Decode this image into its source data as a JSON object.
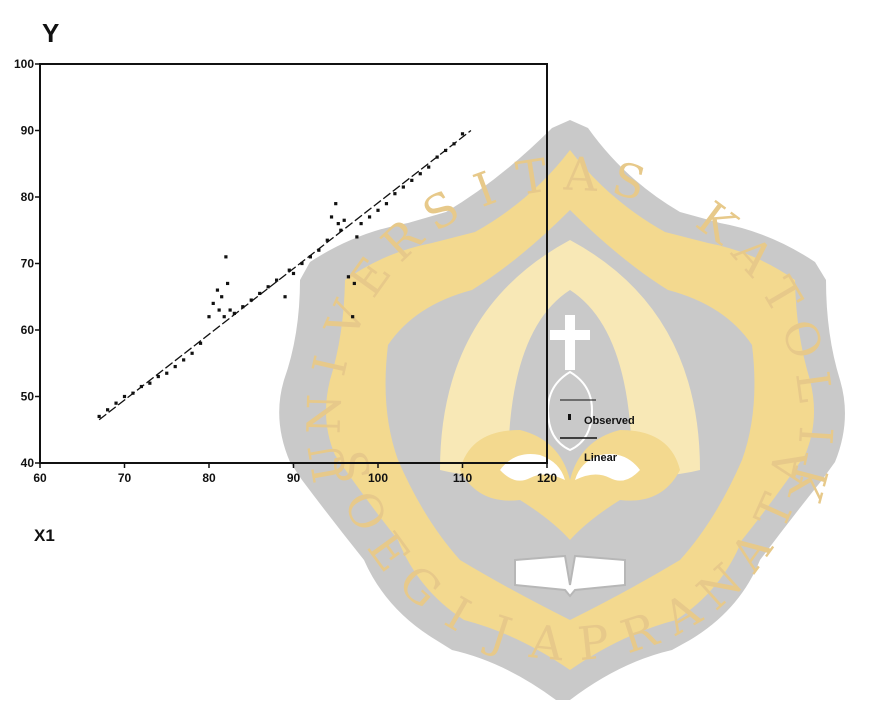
{
  "chart_data": {
    "type": "scatter",
    "title": "",
    "xlabel": "X1",
    "ylabel": "Y",
    "xlim": [
      60,
      120
    ],
    "ylim": [
      40,
      100
    ],
    "x_ticks": [
      "60",
      "70",
      "80",
      "90",
      "100",
      "110",
      "120"
    ],
    "y_ticks": [
      "40",
      "50",
      "60",
      "70",
      "80",
      "90",
      "100"
    ],
    "grid": false,
    "legend_position": "right",
    "series": [
      {
        "name": "Observed",
        "style": "points",
        "x": [
          67,
          68,
          69,
          70,
          71,
          72,
          73,
          74,
          75,
          76,
          77,
          78,
          79,
          80,
          80.5,
          81,
          81.2,
          81.5,
          81.8,
          82,
          82.2,
          82.5,
          83,
          84,
          85,
          86,
          87,
          88,
          89,
          89.5,
          90,
          91,
          92,
          93,
          94,
          94.5,
          95,
          95.3,
          95.6,
          96,
          96.5,
          97,
          97.2,
          97.5,
          98,
          99,
          100,
          101,
          102,
          103,
          104,
          105,
          106,
          107,
          108,
          109,
          110
        ],
        "y": [
          47,
          48,
          49,
          50,
          50.5,
          51.5,
          52,
          53,
          53.5,
          54.5,
          55.5,
          56.5,
          58,
          62,
          64,
          66,
          63,
          65,
          62,
          71,
          67,
          63,
          62.5,
          63.5,
          64.5,
          65.5,
          66.5,
          67.5,
          65,
          69,
          68.5,
          70,
          71,
          72,
          73.5,
          77,
          79,
          76,
          75,
          76.5,
          68,
          62,
          67,
          74,
          76,
          77,
          78,
          79,
          80.5,
          81.5,
          82.5,
          83.5,
          84.5,
          86,
          87,
          88,
          89.5
        ]
      },
      {
        "name": "Linear",
        "style": "line",
        "x": [
          67,
          111
        ],
        "y": [
          46.5,
          90
        ]
      }
    ]
  },
  "watermark": {
    "top_text": "UNIVERSITAS KATOLIK",
    "bottom_text": "SOEGIJAPRANATA",
    "colors": {
      "gold": "#f3d98f",
      "gold_light": "#f8e8b6",
      "grey": "#c9c9c9",
      "grey_dark": "#b7b7b7",
      "letter": "#e7c98a"
    }
  },
  "colors": {
    "ink": "#111111",
    "background": "#ffffff"
  }
}
